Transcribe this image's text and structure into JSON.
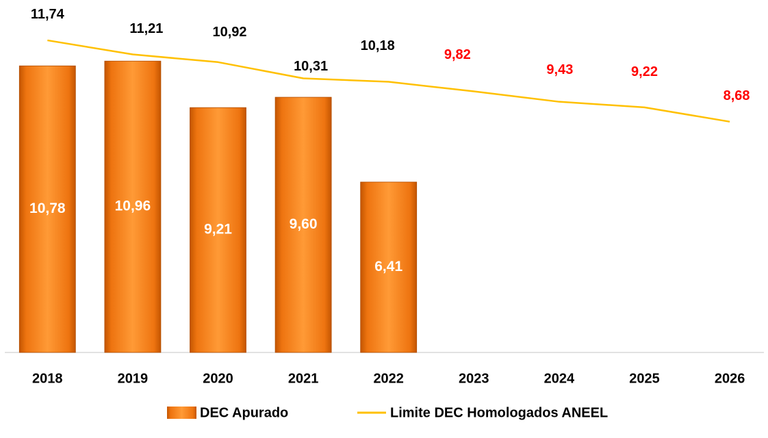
{
  "chart_data": {
    "type": "bar",
    "categories": [
      "2018",
      "2019",
      "2020",
      "2021",
      "2022",
      "2023",
      "2024",
      "2025",
      "2026"
    ],
    "series": [
      {
        "name": "DEC Apurado",
        "type": "bar",
        "color": "#f47c14",
        "values": [
          10.78,
          10.96,
          9.21,
          9.6,
          6.41,
          null,
          null,
          null,
          null
        ],
        "value_labels": [
          "10,78",
          "10,96",
          "9,21",
          "9,60",
          "6,41",
          null,
          null,
          null,
          null
        ],
        "label_color": "#ffffff"
      },
      {
        "name": "Limite DEC Homologados ANEEL",
        "type": "line",
        "color": "#ffc000",
        "values": [
          11.74,
          11.21,
          10.92,
          10.31,
          10.18,
          9.82,
          9.43,
          9.22,
          8.68
        ],
        "value_labels": [
          "11,74",
          "11,21",
          "10,92",
          "10,31",
          "10,18",
          "9,82",
          "9,43",
          "9,22",
          "8,68"
        ],
        "label_colors": [
          "#000000",
          "#000000",
          "#000000",
          "#000000",
          "#000000",
          "#ff0000",
          "#ff0000",
          "#ff0000",
          "#ff0000"
        ]
      }
    ],
    "ylim": [
      0,
      13
    ],
    "grid": false
  }
}
